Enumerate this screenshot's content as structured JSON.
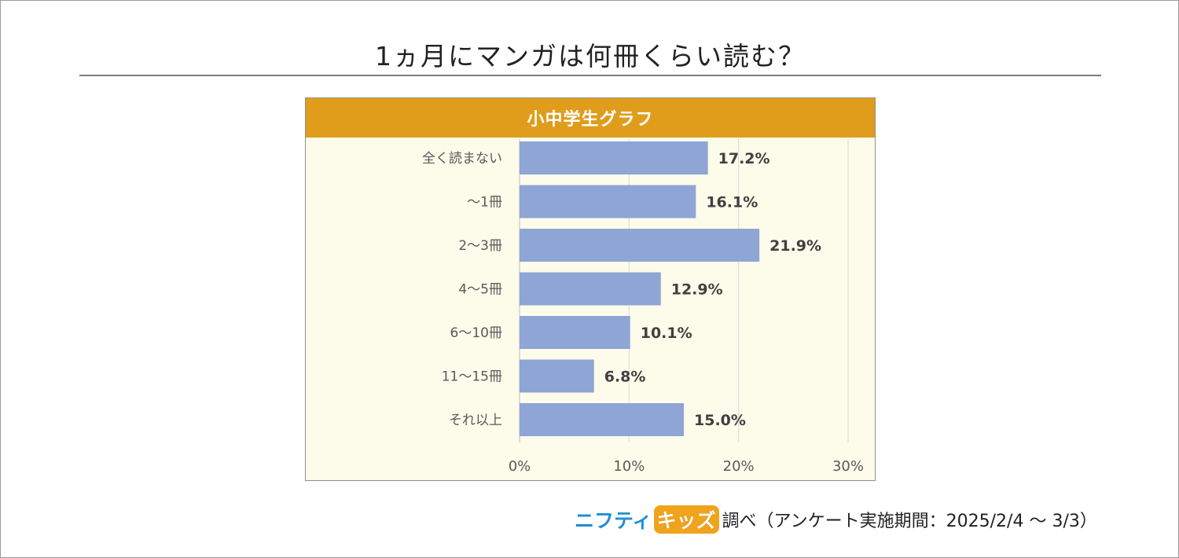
{
  "page": {
    "title": "1ヵ月にマンガは何冊くらい読む？"
  },
  "chart_panel": {
    "header": "小中学生グラフ"
  },
  "chart_data": {
    "type": "bar",
    "orientation": "horizontal",
    "title": "小中学生グラフ",
    "categories": [
      "全く読まない",
      "～1冊",
      "2～3冊",
      "4～5冊",
      "6～10冊",
      "11～15冊",
      "それ以上"
    ],
    "values": [
      17.2,
      16.1,
      21.9,
      12.9,
      10.1,
      6.8,
      15.0
    ],
    "value_labels": [
      "17.2%",
      "16.1%",
      "21.9%",
      "12.9%",
      "10.1%",
      "6.8%",
      "15.0%"
    ],
    "x_ticks": [
      0,
      10,
      20,
      30
    ],
    "x_tick_labels": [
      "0%",
      "10%",
      "20%",
      "30%"
    ],
    "xlim": [
      0,
      30
    ],
    "xlabel": "",
    "ylabel": "",
    "grid": true,
    "colors": {
      "bar": "#8ea5d5",
      "header": "#e09d1c",
      "plot_bg": "#fdfbea",
      "gridline": "#d9d9d9"
    }
  },
  "footer": {
    "logo_part1": "ニフティ",
    "logo_part2": "キッズ",
    "source_text": "調べ（アンケート実施期間：2025/2/4 ～ 3/3）"
  }
}
